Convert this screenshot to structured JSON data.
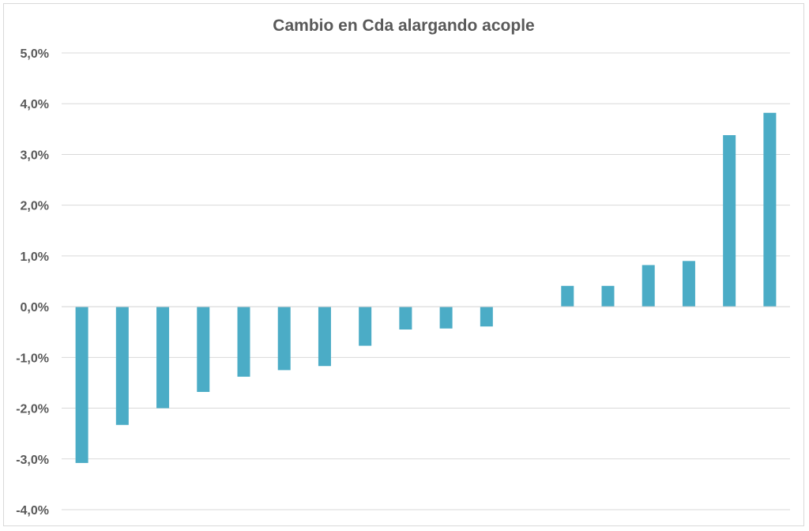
{
  "chart_data": {
    "type": "bar",
    "title": "Cambio en Cda alargando acople",
    "xlabel": "",
    "ylabel": "",
    "ylim": [
      -0.04,
      0.05
    ],
    "yticks": [
      0.05,
      0.04,
      0.03,
      0.02,
      0.01,
      0.0,
      -0.01,
      -0.02,
      -0.03,
      -0.04
    ],
    "ytick_labels": [
      "5,0%",
      "4,0%",
      "3,0%",
      "2,0%",
      "1,0%",
      "0,0%",
      "-1,0%",
      "-2,0%",
      "-3,0%",
      "-4,0%"
    ],
    "grid": true,
    "legend": "none",
    "bar_color": "#4BACC6",
    "values": [
      -0.0308,
      -0.0233,
      -0.02,
      -0.0168,
      -0.0138,
      -0.0125,
      -0.0117,
      -0.0077,
      -0.0045,
      -0.0043,
      -0.0039,
      0.0,
      0.0041,
      0.0041,
      0.0082,
      0.009,
      0.0338,
      0.0382
    ]
  }
}
